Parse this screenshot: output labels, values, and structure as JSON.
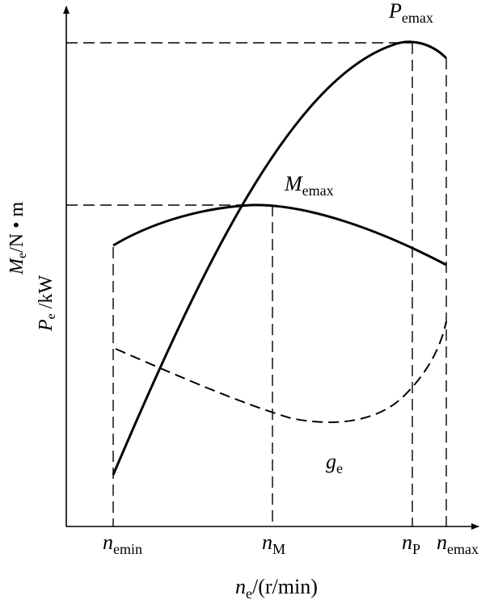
{
  "axes": {
    "y_label_line1": {
      "sym": "M",
      "sub": "e",
      "unit": "/N • m"
    },
    "y_label_line2": {
      "sym": "P",
      "sub": "e",
      "unit": " /kW"
    },
    "x_label": {
      "sym": "n",
      "sub": "e",
      "unit": "/(r/min)"
    }
  },
  "ticks": {
    "n_emin": {
      "sym": "n",
      "sub": "emin"
    },
    "n_M": {
      "sym": "n",
      "sub": "M"
    },
    "n_P": {
      "sym": "n",
      "sub": "P"
    },
    "n_emax": {
      "sym": "n",
      "sub": "emax"
    }
  },
  "annotations": {
    "P_emax": {
      "sym": "P",
      "sub": "emax"
    },
    "M_emax": {
      "sym": "M",
      "sub": "emax"
    },
    "g_e": {
      "sym": "g",
      "sub": "e"
    }
  },
  "colors": {
    "ink": "#000000",
    "background": "#ffffff"
  }
}
